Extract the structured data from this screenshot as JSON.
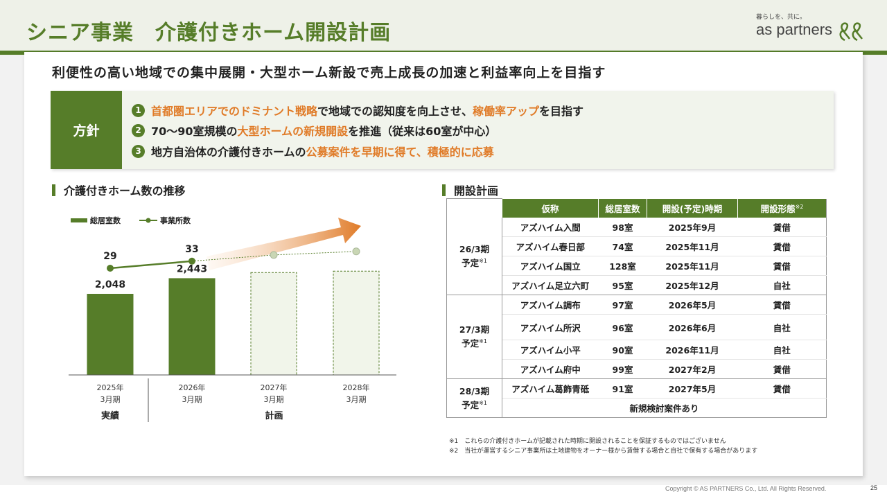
{
  "header": {
    "title": "シニア事業　介護付きホーム開設計画",
    "logo_tagline": "暮らしを、共に。",
    "logo_name": "as partners",
    "brand_color": "#567d29",
    "accent_color": "#e07b28"
  },
  "headline": "利便性の高い地域での集中展開・大型ホーム新設で売上成長の加速と利益率向上を目指す",
  "policy": {
    "label": "方針",
    "items": [
      {
        "num": "1",
        "parts": [
          {
            "t": "首都圏エリアでのドミナント戦略",
            "hl": true
          },
          {
            "t": "で地域での認知度を向上させ、",
            "hl": false
          },
          {
            "t": "稼働率アップ",
            "hl": true
          },
          {
            "t": "を目指す",
            "hl": false
          }
        ]
      },
      {
        "num": "2",
        "parts": [
          {
            "t": "70～90室規模の",
            "hl": false
          },
          {
            "t": "大型ホームの新規開設",
            "hl": true
          },
          {
            "t": "を推進（従来は60室が中心）",
            "hl": false
          }
        ]
      },
      {
        "num": "3",
        "parts": [
          {
            "t": "地方自治体の介護付きホームの",
            "hl": false
          },
          {
            "t": "公募案件を早期に得て、積極的に応募",
            "hl": true
          }
        ]
      }
    ]
  },
  "left_section": {
    "title": "介護付きホーム数の推移"
  },
  "chart_data": {
    "type": "bar",
    "categories": [
      "2025年\n3月期",
      "2026年\n3月期",
      "2027年\n3月期",
      "2028年\n3月期"
    ],
    "category_lines": [
      [
        "2025年",
        "3月期"
      ],
      [
        "2026年",
        "3月期"
      ],
      [
        "2027年",
        "3月期"
      ],
      [
        "2028年",
        "3月期"
      ]
    ],
    "series": [
      {
        "name": "総居室数",
        "type": "bar",
        "values": [
          2048,
          2443,
          null,
          null
        ],
        "labels": [
          "2,048",
          "2,443",
          "",
          ""
        ],
        "plan_values_unlabeled": [
          2585,
          2620
        ]
      },
      {
        "name": "事業所数",
        "type": "line",
        "values": [
          29,
          33,
          null,
          null
        ],
        "labels": [
          "29",
          "33",
          "",
          ""
        ],
        "plan_values_unlabeled": [
          36.5,
          38.5
        ]
      }
    ],
    "groups": [
      {
        "label": "実績",
        "span": [
          0,
          0
        ]
      },
      {
        "label": "計画",
        "span": [
          1,
          3
        ]
      }
    ],
    "legend": "top-left",
    "bar_ylim": [
      0,
      3500
    ],
    "line_ylim": [
      0,
      60
    ]
  },
  "right_section": {
    "title": "開設計画"
  },
  "table": {
    "headers": [
      "仮称",
      "総居室数",
      "開設(予定)時期",
      "開設形態"
    ],
    "header_sup": "※2",
    "groups": [
      {
        "period": "26/3期",
        "suffix": "予定",
        "sup": "※1",
        "rows": [
          [
            "アズハイム入間",
            "98室",
            "2025年9月",
            "賃借"
          ],
          [
            "アズハイム春日部",
            "74室",
            "2025年11月",
            "賃借"
          ],
          [
            "アズハイム国立",
            "128室",
            "2025年11月",
            "賃借"
          ],
          [
            "アズハイム足立六町",
            "95室",
            "2025年12月",
            "自社"
          ]
        ]
      },
      {
        "period": "27/3期",
        "suffix": "予定",
        "sup": "※1",
        "rows": [
          [
            "アズハイム調布",
            "97室",
            "2026年5月",
            "賃借"
          ],
          [
            "アズハイム所沢",
            "96室",
            "2026年6月",
            "自社"
          ],
          [
            "アズハイム小平",
            "90室",
            "2026年11月",
            "自社"
          ],
          [
            "アズハイム府中",
            "99室",
            "2027年2月",
            "賃借"
          ]
        ]
      },
      {
        "period": "28/3期",
        "suffix": "予定",
        "sup": "※1",
        "rows": [
          [
            "アズハイム葛飾青砥",
            "91室",
            "2027年5月",
            "賃借"
          ]
        ],
        "note": "新規検討案件あり"
      }
    ]
  },
  "notes": [
    "※1　これらの介護付きホームが記載された時期に開設されることを保証するものではございません",
    "※2　当社が運営するシニア事業所は土地建物をオーナー様から賃借する場合と自社で保有する場合があります"
  ],
  "footer": {
    "copyright": "Copyright © AS PARTNERS Co., Ltd. All Rights Reserved.",
    "page": "25"
  }
}
